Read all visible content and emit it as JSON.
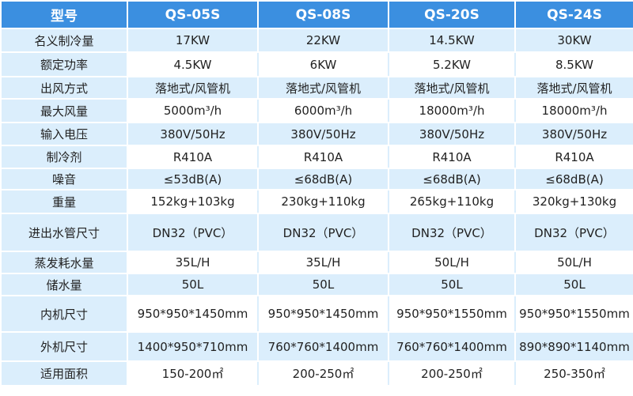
{
  "table": {
    "header": [
      "型号",
      "QS-05S",
      "QS-08S",
      "QS-20S",
      "QS-24S"
    ],
    "rows": [
      [
        "名义制冷量",
        "17KW",
        "22KW",
        "14.5KW",
        "30KW"
      ],
      [
        "额定功率",
        "4.5KW",
        "6KW",
        "5.2KW",
        "8.5KW"
      ],
      [
        "出风方式",
        "落地式/风管机",
        "落地式/风管机",
        "落地式/风管机",
        "落地式/风管机"
      ],
      [
        "最大风量",
        "5000m³/h",
        "6000m³/h",
        "18000m³/h",
        "18000m³/h"
      ],
      [
        "输入电压",
        "380V/50Hz",
        "380V/50Hz",
        "380V/50Hz",
        "380V/50Hz"
      ],
      [
        "制冷剂",
        "R410A",
        "R410A",
        "R410A",
        "R410A"
      ],
      [
        "噪音",
        "≤53dB(A)",
        "≤68dB(A)",
        "≤68dB(A)",
        "≤68dB(A)"
      ],
      [
        "重量",
        "152kg+103kg",
        "230kg+110kg",
        "265kg+110kg",
        "320kg+130kg"
      ],
      [
        "进出水管尺寸",
        "DN32（PVC）",
        "DN32（PVC）",
        "DN32（PVC）",
        "DN32（PVC）"
      ],
      [
        "蒸发耗水量",
        "35L/H",
        "35L/H",
        "50L/H",
        "50L/H"
      ],
      [
        "储水量",
        "50L",
        "50L",
        "50L",
        "50L"
      ],
      [
        "内机尺寸",
        "950*950*1450mm",
        "950*950*1450mm",
        "950*950*1550mm",
        "950*950*1550mm"
      ],
      [
        "外机尺寸",
        "1400*950*710mm",
        "760*760*1400mm",
        "760*760*1400mm",
        "890*890*1140mm"
      ],
      [
        "适用面积",
        "150-200㎡",
        "200-250㎡",
        "200-250㎡",
        "250-350㎡"
      ]
    ]
  }
}
